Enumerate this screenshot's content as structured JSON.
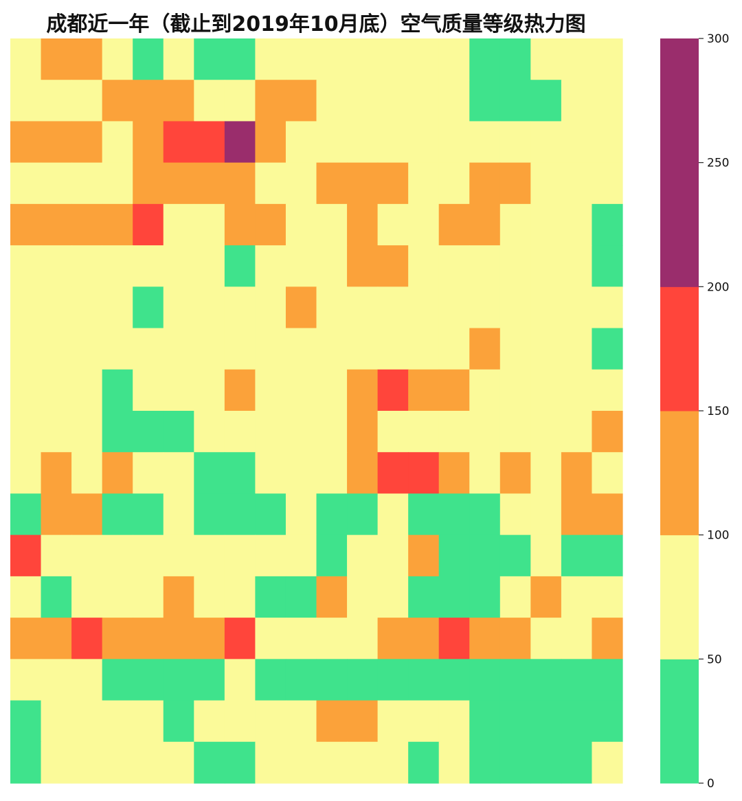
{
  "chart_data": {
    "type": "heatmap",
    "title": "成都近一年（截止到2019年10月底）空气质量等级热力图",
    "grid": false,
    "colorbar": {
      "placement": "right",
      "range": [
        0,
        300
      ],
      "boundaries": [
        0,
        50,
        100,
        150,
        200,
        300
      ],
      "colors": [
        "#3fe38c",
        "#fbfa99",
        "#fba23a",
        "#ff453b",
        "#9a2d6c"
      ],
      "ticks": [
        "0",
        "50",
        "100",
        "150",
        "200",
        "250",
        "300"
      ]
    },
    "rows": 18,
    "cols": 20,
    "values": [
      [
        75,
        125,
        125,
        75,
        25,
        75,
        25,
        25,
        75,
        75,
        75,
        75,
        75,
        75,
        75,
        25,
        25,
        75,
        75,
        75
      ],
      [
        75,
        75,
        75,
        125,
        125,
        125,
        75,
        75,
        125,
        125,
        75,
        75,
        75,
        75,
        75,
        25,
        25,
        25,
        75,
        75
      ],
      [
        125,
        125,
        125,
        75,
        125,
        175,
        175,
        250,
        125,
        75,
        75,
        75,
        75,
        75,
        75,
        75,
        75,
        75,
        75,
        75
      ],
      [
        75,
        75,
        75,
        75,
        125,
        125,
        125,
        125,
        75,
        75,
        125,
        125,
        125,
        75,
        75,
        125,
        125,
        75,
        75,
        75
      ],
      [
        125,
        125,
        125,
        125,
        175,
        75,
        75,
        125,
        125,
        75,
        75,
        125,
        75,
        75,
        125,
        125,
        75,
        75,
        75,
        25
      ],
      [
        75,
        75,
        75,
        75,
        75,
        75,
        75,
        25,
        75,
        75,
        75,
        125,
        125,
        75,
        75,
        75,
        75,
        75,
        75,
        25
      ],
      [
        75,
        75,
        75,
        75,
        25,
        75,
        75,
        75,
        75,
        125,
        75,
        75,
        75,
        75,
        75,
        75,
        75,
        75,
        75,
        75
      ],
      [
        75,
        75,
        75,
        75,
        75,
        75,
        75,
        75,
        75,
        75,
        75,
        75,
        75,
        75,
        75,
        125,
        75,
        75,
        75,
        25
      ],
      [
        75,
        75,
        75,
        25,
        75,
        75,
        75,
        125,
        75,
        75,
        75,
        125,
        175,
        125,
        125,
        75,
        75,
        75,
        75,
        75
      ],
      [
        75,
        75,
        75,
        25,
        25,
        25,
        75,
        75,
        75,
        75,
        75,
        125,
        75,
        75,
        75,
        75,
        75,
        75,
        75,
        125
      ],
      [
        75,
        125,
        75,
        125,
        75,
        75,
        25,
        25,
        75,
        75,
        75,
        125,
        175,
        175,
        125,
        75,
        125,
        75,
        125,
        75
      ],
      [
        25,
        125,
        125,
        25,
        25,
        75,
        25,
        25,
        25,
        75,
        25,
        25,
        75,
        25,
        25,
        25,
        75,
        75,
        125,
        125
      ],
      [
        175,
        75,
        75,
        75,
        75,
        75,
        75,
        75,
        75,
        75,
        25,
        75,
        75,
        125,
        25,
        25,
        25,
        75,
        25,
        25
      ],
      [
        75,
        25,
        75,
        75,
        75,
        125,
        75,
        75,
        25,
        25,
        125,
        75,
        75,
        25,
        25,
        25,
        75,
        125,
        75,
        75
      ],
      [
        125,
        125,
        175,
        125,
        125,
        125,
        125,
        175,
        75,
        75,
        75,
        75,
        125,
        125,
        175,
        125,
        125,
        75,
        75,
        125
      ],
      [
        75,
        75,
        75,
        25,
        25,
        25,
        25,
        75,
        25,
        25,
        25,
        25,
        25,
        25,
        25,
        25,
        25,
        25,
        25,
        25
      ],
      [
        25,
        75,
        75,
        75,
        75,
        25,
        75,
        75,
        75,
        75,
        125,
        125,
        75,
        75,
        75,
        25,
        25,
        25,
        25,
        25
      ],
      [
        25,
        75,
        75,
        75,
        75,
        75,
        25,
        25,
        75,
        75,
        75,
        75,
        75,
        25,
        75,
        25,
        25,
        25,
        25,
        75
      ]
    ]
  }
}
